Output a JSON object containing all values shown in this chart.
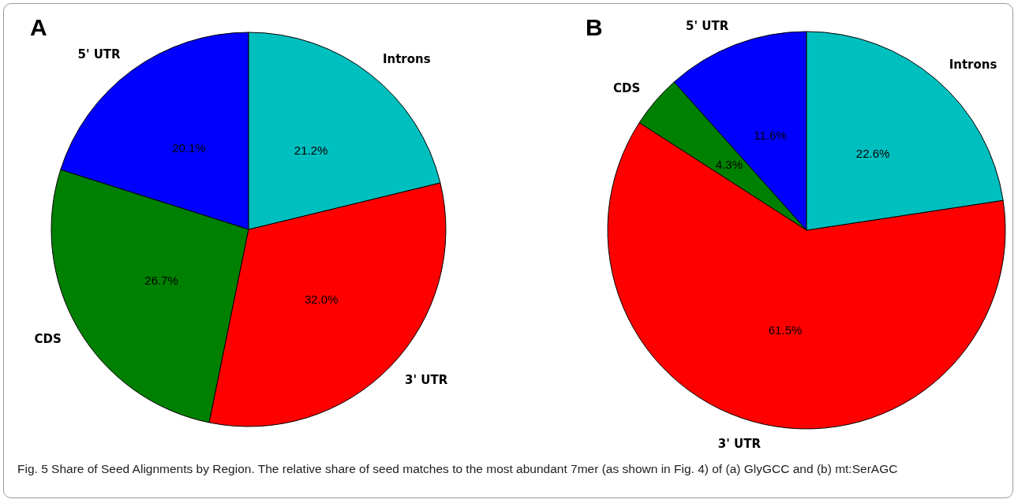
{
  "chart_data": [
    {
      "type": "pie",
      "categories": [
        "5' UTR",
        "CDS",
        "3' UTR",
        "Introns"
      ],
      "values": [
        20.1,
        26.7,
        32.0,
        21.2
      ],
      "value_labels": [
        "20.1%",
        "26.7%",
        "32.0%",
        "21.2%"
      ],
      "colors": [
        "#0000ff",
        "#008000",
        "#ff0000",
        "#00bfbf"
      ],
      "annotations": [
        "A",
        "Fig. 5 Share of Seed Alignments by Region. The relative share of seed matches to the most abundant 7mer (as shown in Fig. 4) of (a) GlyGCC and (b) mt:SerAGC"
      ]
    },
    {
      "type": "pie",
      "categories": [
        "5' UTR",
        "CDS",
        "3' UTR",
        "Introns"
      ],
      "values": [
        11.6,
        4.3,
        61.5,
        22.6
      ],
      "value_labels": [
        "11.6%",
        "4.3%",
        "61.5%",
        "22.6%"
      ],
      "colors": [
        "#0000ff",
        "#008000",
        "#ff0000",
        "#00bfbf"
      ],
      "annotations": [
        "B"
      ]
    }
  ]
}
